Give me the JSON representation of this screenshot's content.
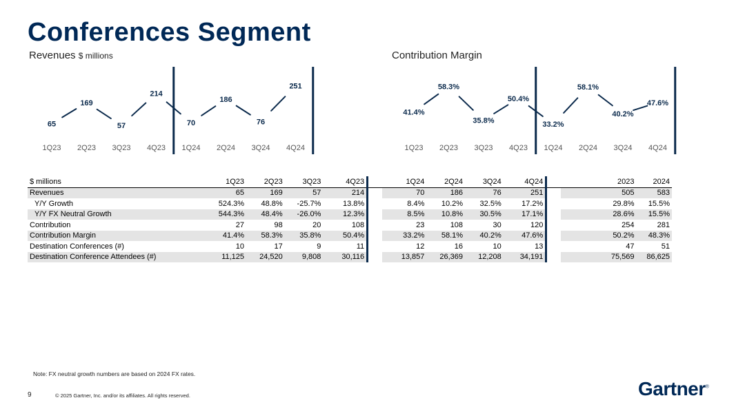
{
  "title": "Conferences Segment",
  "revenues_title": "Revenues",
  "revenues_unit": "$ millions",
  "margin_title": "Contribution Margin",
  "colors": {
    "navy": "#002856",
    "line": "#0b2a4c",
    "shade": "#e4e4e4"
  },
  "chart_data": [
    {
      "type": "line",
      "title": "Revenues $ millions",
      "categories": [
        "1Q23",
        "2Q23",
        "3Q23",
        "4Q23",
        "1Q24",
        "2Q24",
        "3Q24",
        "4Q24"
      ],
      "values": [
        65,
        169,
        57,
        214,
        70,
        186,
        76,
        251
      ],
      "labels": [
        "65",
        "169",
        "57",
        "214",
        "70",
        "186",
        "76",
        "251"
      ],
      "ylim": [
        40,
        260
      ],
      "separators_after": [
        "4Q23",
        "4Q24"
      ]
    },
    {
      "type": "line",
      "title": "Contribution Margin",
      "categories": [
        "1Q23",
        "2Q23",
        "3Q23",
        "4Q23",
        "1Q24",
        "2Q24",
        "3Q24",
        "4Q24"
      ],
      "values": [
        41.4,
        58.3,
        35.8,
        50.4,
        33.2,
        58.1,
        40.2,
        47.6
      ],
      "labels": [
        "41.4%",
        "58.3%",
        "35.8%",
        "50.4%",
        "33.2%",
        "58.1%",
        "40.2%",
        "47.6%"
      ],
      "ylim": [
        30,
        60
      ],
      "separators_after": [
        "4Q23",
        "4Q24"
      ]
    }
  ],
  "table": {
    "header": [
      "$ millions",
      "1Q23",
      "2Q23",
      "3Q23",
      "4Q23",
      "1Q24",
      "2Q24",
      "3Q24",
      "4Q24",
      "2023",
      "2024"
    ],
    "rows": [
      {
        "label": "Revenues",
        "values": [
          "65",
          "169",
          "57",
          "214",
          "70",
          "186",
          "76",
          "251",
          "505",
          "583"
        ]
      },
      {
        "label": "Y/Y Growth",
        "values": [
          "524.3%",
          "48.8%",
          "-25.7%",
          "13.8%",
          "8.4%",
          "10.2%",
          "32.5%",
          "17.2%",
          "29.8%",
          "15.5%"
        ]
      },
      {
        "label": "Y/Y FX Neutral Growth",
        "values": [
          "544.3%",
          "48.4%",
          "-26.0%",
          "12.3%",
          "8.5%",
          "10.8%",
          "30.5%",
          "17.1%",
          "28.6%",
          "15.5%"
        ]
      },
      {
        "label": "Contribution",
        "values": [
          "27",
          "98",
          "20",
          "108",
          "23",
          "108",
          "30",
          "120",
          "254",
          "281"
        ]
      },
      {
        "label": "Contribution Margin",
        "values": [
          "41.4%",
          "58.3%",
          "35.8%",
          "50.4%",
          "33.2%",
          "58.1%",
          "40.2%",
          "47.6%",
          "50.2%",
          "48.3%"
        ]
      },
      {
        "label": "Destination Conferences (#)",
        "values": [
          "10",
          "17",
          "9",
          "11",
          "12",
          "16",
          "10",
          "13",
          "47",
          "51"
        ]
      },
      {
        "label": "Destination Conference Attendees (#)",
        "values": [
          "11,125",
          "24,520",
          "9,808",
          "30,116",
          "13,857",
          "26,369",
          "12,208",
          "34,191",
          "75,569",
          "86,625"
        ]
      }
    ]
  },
  "footer": {
    "note": "Note: FX neutral growth numbers are based on 2024 FX rates.",
    "page_number": "9",
    "copyright": "© 2025 Gartner, Inc. and/or its affiliates. All rights reserved.",
    "logo": "Gartner",
    "logo_mark": "®"
  }
}
